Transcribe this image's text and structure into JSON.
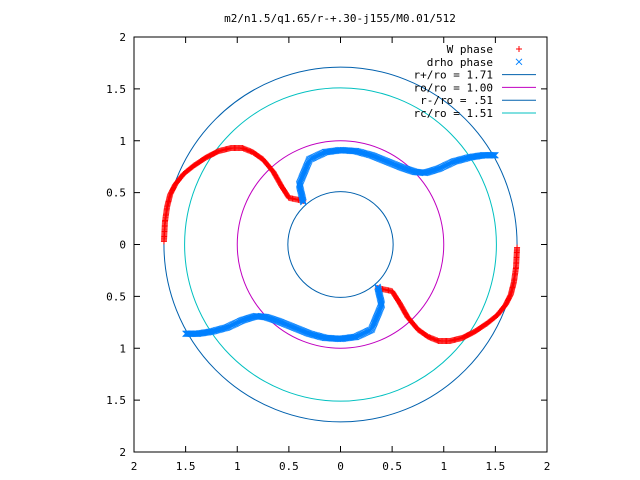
{
  "chart_data": {
    "type": "scatter",
    "title": "m2/n1.5/q1.65/r-+.30-j155/M0.01/512",
    "xlabel": "",
    "ylabel": "",
    "xlim": [
      -2,
      2
    ],
    "ylim": [
      -2,
      2
    ],
    "grid": false,
    "legend_position": "top-right",
    "x_tick_labels": [
      "2",
      "1.5",
      "1",
      "0.5",
      "0",
      "0.5",
      "1",
      "1.5",
      "2"
    ],
    "x_tick_values": [
      -2,
      -1.5,
      -1,
      -0.5,
      0,
      0.5,
      1,
      1.5,
      2
    ],
    "y_tick_labels": [
      "2",
      "1.5",
      "1",
      "0.5",
      "0",
      "0.5",
      "1",
      "1.5",
      "2"
    ],
    "y_tick_values": [
      2,
      1.5,
      1,
      0.5,
      0,
      -0.5,
      -1,
      -1.5,
      -2
    ],
    "series": [
      {
        "name": "W phase",
        "kind": "points",
        "marker": "plus",
        "color": "#ff0000",
        "points": [
          [
            -1.71,
            0.03
          ],
          [
            -1.7,
            0.22
          ],
          [
            -1.68,
            0.36
          ],
          [
            -1.65,
            0.48
          ],
          [
            -1.6,
            0.58
          ],
          [
            -1.52,
            0.68
          ],
          [
            -1.42,
            0.76
          ],
          [
            -1.3,
            0.84
          ],
          [
            -1.18,
            0.9
          ],
          [
            -1.06,
            0.93
          ],
          [
            -0.95,
            0.93
          ],
          [
            -0.85,
            0.89
          ],
          [
            -0.75,
            0.82
          ],
          [
            -0.65,
            0.7
          ],
          [
            -0.57,
            0.56
          ],
          [
            -0.5,
            0.45
          ],
          [
            -0.36,
            0.42
          ],
          [
            1.71,
            -0.03
          ],
          [
            1.7,
            -0.22
          ],
          [
            1.68,
            -0.36
          ],
          [
            1.65,
            -0.48
          ],
          [
            1.6,
            -0.58
          ],
          [
            1.52,
            -0.68
          ],
          [
            1.42,
            -0.76
          ],
          [
            1.3,
            -0.84
          ],
          [
            1.18,
            -0.9
          ],
          [
            1.06,
            -0.93
          ],
          [
            0.95,
            -0.93
          ],
          [
            0.85,
            -0.89
          ],
          [
            0.75,
            -0.82
          ],
          [
            0.65,
            -0.7
          ],
          [
            0.57,
            -0.56
          ],
          [
            0.5,
            -0.45
          ],
          [
            0.36,
            -0.42
          ]
        ]
      },
      {
        "name": "drho phase",
        "kind": "points",
        "marker": "cross",
        "color": "#0080ff",
        "points": [
          [
            -0.36,
            0.41
          ],
          [
            -0.4,
            0.58
          ],
          [
            -0.3,
            0.82
          ],
          [
            -0.15,
            0.89
          ],
          [
            0.0,
            0.91
          ],
          [
            0.15,
            0.9
          ],
          [
            0.3,
            0.86
          ],
          [
            0.45,
            0.8
          ],
          [
            0.6,
            0.74
          ],
          [
            0.72,
            0.7
          ],
          [
            0.82,
            0.69
          ],
          [
            0.95,
            0.73
          ],
          [
            1.1,
            0.8
          ],
          [
            1.25,
            0.84
          ],
          [
            1.38,
            0.86
          ],
          [
            1.5,
            0.86
          ],
          [
            0.36,
            -0.41
          ],
          [
            0.4,
            -0.58
          ],
          [
            0.3,
            -0.82
          ],
          [
            0.15,
            -0.89
          ],
          [
            0.0,
            -0.91
          ],
          [
            -0.15,
            -0.9
          ],
          [
            -0.3,
            -0.86
          ],
          [
            -0.45,
            -0.8
          ],
          [
            -0.6,
            -0.74
          ],
          [
            -0.72,
            -0.7
          ],
          [
            -0.82,
            -0.69
          ],
          [
            -0.95,
            -0.73
          ],
          [
            -1.1,
            -0.8
          ],
          [
            -1.25,
            -0.84
          ],
          [
            -1.38,
            -0.86
          ],
          [
            -1.5,
            -0.86
          ]
        ]
      },
      {
        "name": "r+/ro = 1.71",
        "kind": "circle",
        "radius": 1.71,
        "color": "#0060ad"
      },
      {
        "name": "ro/ro = 1.00",
        "kind": "circle",
        "radius": 1.0,
        "color": "#c000c0"
      },
      {
        "name": "r-/ro = .51",
        "kind": "circle",
        "radius": 0.51,
        "color": "#0060ad"
      },
      {
        "name": "rc/ro = 1.51",
        "kind": "circle",
        "radius": 1.51,
        "color": "#00c0c0"
      }
    ]
  }
}
